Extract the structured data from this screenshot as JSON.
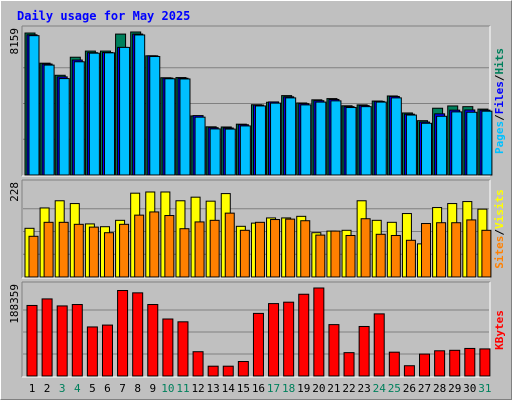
{
  "title": "Daily usage for May 2025",
  "days": [
    "1",
    "2",
    "3",
    "4",
    "5",
    "6",
    "7",
    "8",
    "9",
    "10",
    "11",
    "12",
    "13",
    "14",
    "15",
    "16",
    "17",
    "18",
    "19",
    "20",
    "21",
    "22",
    "23",
    "24",
    "25",
    "26",
    "27",
    "28",
    "29",
    "30",
    "31"
  ],
  "weekend_days": [
    "3",
    "4",
    "10",
    "11",
    "17",
    "18",
    "24",
    "25",
    "31"
  ],
  "colors": {
    "hits": "#00805c",
    "files": "#0000ff",
    "pages": "#00c0ff",
    "visits": "#ffff00",
    "sites": "#ff8000",
    "kbytes": "#ff0000",
    "title": "#0000ff",
    "weekday": "#000000",
    "weekend": "#00805c",
    "background": "#c0c0c0",
    "plot": "#c0c0c0"
  },
  "chart_data": [
    {
      "type": "bar",
      "name": "top",
      "ymax_label": "8159",
      "ylim": [
        0,
        8159
      ],
      "series": [
        {
          "name": "Hits",
          "values": [
            8100,
            6380,
            5690,
            6720,
            7070,
            7070,
            8040,
            8159,
            6800,
            5550,
            5560,
            3370,
            2750,
            2740,
            2900,
            4010,
            4150,
            4530,
            4110,
            4290,
            4360,
            3950,
            4000,
            4220,
            4510,
            3540,
            3100,
            3810,
            3940,
            3900,
            3760
          ]
        },
        {
          "name": "Files",
          "values": [
            8000,
            6330,
            5600,
            6560,
            6980,
            6990,
            7280,
            8040,
            6800,
            5530,
            5520,
            3390,
            2700,
            2680,
            2870,
            3990,
            4170,
            4460,
            4070,
            4240,
            4310,
            3900,
            3960,
            4200,
            4480,
            3470,
            3020,
            3490,
            3700,
            3710,
            3700
          ]
        },
        {
          "name": "Pages",
          "values": [
            7950,
            6270,
            5500,
            6460,
            6950,
            6970,
            7280,
            7990,
            6760,
            5490,
            5480,
            3300,
            2630,
            2620,
            2800,
            3940,
            4100,
            4400,
            4000,
            4160,
            4230,
            3850,
            3900,
            4160,
            4400,
            3420,
            2950,
            3350,
            3600,
            3580,
            3640
          ]
        }
      ]
    },
    {
      "type": "bar",
      "name": "middle",
      "ymax_label": "228",
      "ylim": [
        0,
        228
      ],
      "series": [
        {
          "name": "Visits",
          "values": [
            122,
            173,
            191,
            184,
            133,
            126,
            142,
            210,
            213,
            213,
            191,
            200,
            190,
            209,
            127,
            135,
            148,
            148,
            152,
            111,
            115,
            117,
            191,
            142,
            137,
            159,
            83,
            174,
            184,
            189,
            170
          ]
        },
        {
          "name": "Sites",
          "values": [
            102,
            137,
            137,
            132,
            125,
            111,
            132,
            155,
            163,
            154,
            121,
            138,
            142,
            160,
            117,
            137,
            144,
            145,
            141,
            105,
            115,
            104,
            146,
            107,
            104,
            92,
            134,
            136,
            136,
            143,
            117
          ]
        }
      ]
    },
    {
      "type": "bar",
      "name": "bottom",
      "ymax_label": "188359",
      "ylim": [
        0,
        188359
      ],
      "series": [
        {
          "name": "KBytes",
          "values": [
            151000,
            165000,
            150000,
            153000,
            105000,
            109000,
            183000,
            178000,
            153000,
            122000,
            116000,
            52000,
            21000,
            21000,
            31000,
            134000,
            155000,
            158000,
            175000,
            188359,
            110000,
            50000,
            106000,
            133000,
            51000,
            22000,
            47000,
            54000,
            55000,
            59000,
            58000
          ]
        }
      ]
    }
  ]
}
